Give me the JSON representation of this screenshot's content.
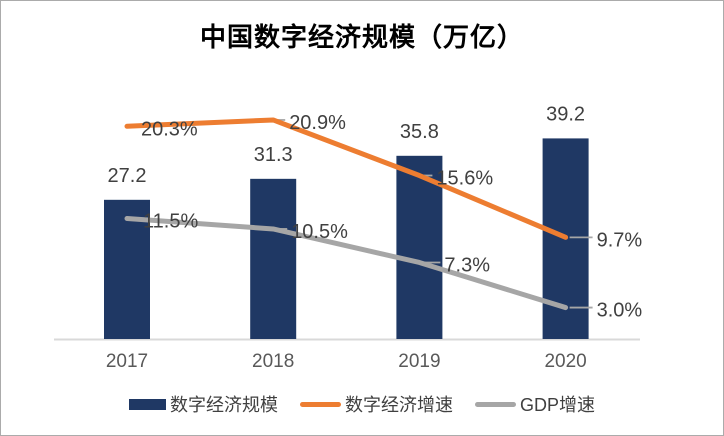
{
  "frame": {
    "background": "#ffffff",
    "border_color": "#ababab"
  },
  "chart_data": {
    "type": "bar",
    "combo": [
      "bar",
      "line",
      "line"
    ],
    "title": "中国数字经济规模（万亿）",
    "categories": [
      "2017",
      "2018",
      "2019",
      "2020"
    ],
    "series": [
      {
        "name": "数字经济规模",
        "type": "bar",
        "axis": "primary",
        "color": "#1F3864",
        "values": [
          27.2,
          31.3,
          35.8,
          39.2
        ],
        "labels": [
          "27.2",
          "31.3",
          "35.8",
          "39.2"
        ]
      },
      {
        "name": "数字经济增速",
        "type": "line",
        "axis": "secondary",
        "color": "#ED7D31",
        "values": [
          20.3,
          20.9,
          15.6,
          9.7
        ],
        "labels": [
          "20.3%",
          "20.9%",
          "15.6%",
          "9.7%"
        ]
      },
      {
        "name": "GDP增速",
        "type": "line",
        "axis": "secondary",
        "color": "#A6A6A6",
        "values": [
          11.5,
          10.5,
          7.3,
          3.0
        ],
        "labels": [
          "11.5%",
          "10.5%",
          "7.3%",
          "3.0%"
        ]
      }
    ],
    "axes": {
      "x_ticks": [
        "2017",
        "2018",
        "2019",
        "2020"
      ],
      "y1lim": [
        0,
        51.2
      ],
      "y2lim": [
        0,
        25
      ],
      "grid": false,
      "y_axis_labels_visible": false,
      "axis_line_color": "#D9D9D9",
      "tick_label_color": "#595959"
    },
    "legend_position": "bottom",
    "data_label_color": "#404040",
    "leader_line_color": "#A6A6A6"
  }
}
